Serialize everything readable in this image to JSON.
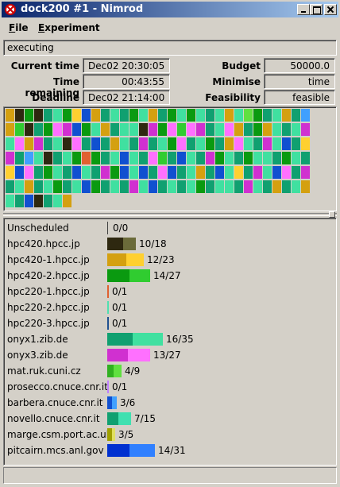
{
  "window": {
    "title": "dock200 #1 - Nimrod"
  },
  "menu": {
    "file": "File",
    "experiment": "Experiment"
  },
  "status": "executing",
  "info": {
    "current_time_label": "Current time",
    "current_time": "Dec02 20:30:05",
    "time_remaining_label": "Time remaining",
    "time_remaining": "00:43:55",
    "deadline_label": "Deadline",
    "deadline": "Dec02 21:14:00",
    "budget_label": "Budget",
    "budget": "50000.0",
    "minimise_label": "Minimise",
    "minimise": "time",
    "feasibility_label": "Feasibility",
    "feasibility": "feasible"
  },
  "colors": {
    "hpc420": "#2e2810",
    "hpc420b": "#6b6b3a",
    "hpc420_1": "#d4a010",
    "hpc420_1b": "#ffd030",
    "hpc420_2": "#0a9a10",
    "hpc420_2b": "#30cc30",
    "hpc220_1": "#e06030",
    "hpc220_2": "#50e0b0",
    "hpc220_3": "#205090",
    "onyx1": "#10a070",
    "onyx1b": "#40e0a0",
    "onyx3": "#d030d0",
    "onyx3b": "#ff70ff",
    "matruk": "#30b020",
    "matrukb": "#60e040",
    "prosecco": "#c080ff",
    "barbera": "#1050d0",
    "barberab": "#40a0ff",
    "novello": "#10a070",
    "novellob": "#40e0b0",
    "marge": "#a0a000",
    "margeb": "#e0e060",
    "pitcairn": "#0030d0",
    "pitcairnb": "#3080ff"
  },
  "job_grid": {
    "rows": [
      [
        "hpc420_1",
        "hpc420",
        "hpc420_2",
        "hpc420",
        "onyx1",
        "onyx1b",
        "hpc420_2",
        "hpc420_1b",
        "barbera",
        "hpc420_1",
        "onyx1",
        "onyx1b",
        "onyx1",
        "hpc420_2",
        "onyx1b",
        "hpc420_1",
        "onyx1",
        "hpc420_2",
        "onyx1b",
        "hpc420_2",
        "onyx1b",
        "onyx1",
        "onyx1b",
        "hpc420_1",
        "onyx1b",
        "matrukb",
        "hpc420_2",
        "onyx1",
        "onyx1b",
        "hpc420_1",
        "onyx1",
        "barberab"
      ],
      [
        "hpc420_1",
        "hpc420_2b",
        "hpc420",
        "onyx1",
        "hpc420_2",
        "onyx3b",
        "onyx3",
        "barbera",
        "hpc420_2",
        "onyx1b",
        "hpc420_1",
        "onyx1",
        "onyx1b",
        "onyx1b",
        "hpc420",
        "onyx3",
        "hpc420_2",
        "onyx3b",
        "hpc420_2b",
        "onyx3b",
        "onyx3",
        "onyx1",
        "onyx1b",
        "onyx3b",
        "hpc420_1",
        "onyx1",
        "hpc420_2",
        "hpc420_1",
        "onyx1b",
        "onyx1",
        "onyx1b",
        "onyx3"
      ],
      [
        "onyx1b",
        "onyx3b",
        "hpc420_1",
        "onyx3",
        "onyx1",
        "onyx1b",
        "hpc420",
        "onyx3b",
        "onyx1",
        "barbera",
        "onyx1",
        "hpc420_1",
        "onyx1b",
        "onyx1",
        "onyx3",
        "onyx1",
        "onyx1b",
        "hpc420_2",
        "onyx3b",
        "onyx1",
        "onyx1b",
        "hpc420_2",
        "onyx1",
        "hpc420_1",
        "onyx3b",
        "onyx1b",
        "onyx1",
        "onyx3",
        "onyx1b",
        "barbera",
        "onyx1",
        "hpc420_1b"
      ],
      [
        "onyx3",
        "onyx1",
        "barberab",
        "onyx1b",
        "hpc420",
        "onyx1",
        "onyx1b",
        "hpc420_2",
        "hpc220_1",
        "hpc420_2",
        "onyx1",
        "onyx1b",
        "barbera",
        "onyx1b",
        "onyx1",
        "onyx3b",
        "hpc420_2b",
        "onyx1",
        "barbera",
        "onyx1b",
        "onyx1",
        "onyx3",
        "hpc420_2",
        "onyx1b",
        "onyx1",
        "hpc420_2",
        "onyx1b",
        "onyx1b",
        "onyx1",
        "hpc420_2",
        "onyx1b",
        "onyx1"
      ],
      [
        "hpc420_1b",
        "barbera",
        "onyx3b",
        "onyx1",
        "hpc420_2",
        "onyx1b",
        "onyx1",
        "barbera",
        "onyx1b",
        "onyx1",
        "onyx3",
        "hpc420_2",
        "barbera",
        "onyx1b",
        "barbera",
        "onyx1",
        "onyx3b",
        "barbera",
        "onyx1",
        "onyx1b",
        "hpc420_1",
        "onyx1",
        "barbera",
        "onyx1b",
        "hpc420_1b",
        "onyx1",
        "onyx3",
        "onyx1b",
        "barbera",
        "onyx3b",
        "onyx1",
        "onyx3"
      ],
      [
        "onyx1",
        "onyx1b",
        "hpc420_1",
        "onyx1",
        "onyx1b",
        "hpc420_2",
        "onyx1",
        "onyx1b",
        "barbera",
        "hpc420_2",
        "onyx1",
        "onyx1b",
        "onyx1",
        "onyx3",
        "onyx1b",
        "barbera",
        "onyx1",
        "onyx1b",
        "onyx1",
        "onyx1b",
        "hpc420_2",
        "onyx1",
        "onyx1b",
        "onyx1b",
        "onyx1",
        "onyx3",
        "onyx1b",
        "onyx1",
        "hpc420_1",
        "onyx1",
        "onyx1b",
        "hpc420_1"
      ],
      [
        "onyx1b",
        "onyx1",
        "barbera",
        "hpc420",
        "onyx1",
        "onyx1b",
        "hpc420_1"
      ]
    ]
  },
  "hosts": [
    {
      "name": "Unscheduled",
      "count": "0/0",
      "segments": []
    },
    {
      "name": "hpc420.hpcc.jp",
      "count": "10/18",
      "segments": [
        {
          "c": "hpc420",
          "w": 20
        },
        {
          "c": "hpc420b",
          "w": 16
        }
      ]
    },
    {
      "name": "hpc420-1.hpcc.jp",
      "count": "12/23",
      "segments": [
        {
          "c": "hpc420_1",
          "w": 24
        },
        {
          "c": "hpc420_1b",
          "w": 22
        }
      ]
    },
    {
      "name": "hpc420-2.hpcc.jp",
      "count": "14/27",
      "segments": [
        {
          "c": "hpc420_2",
          "w": 28
        },
        {
          "c": "hpc420_2b",
          "w": 26
        }
      ]
    },
    {
      "name": "hpc220-1.hpcc.jp",
      "count": "0/1",
      "segments": [
        {
          "c": "hpc220_1",
          "w": 2
        }
      ]
    },
    {
      "name": "hpc220-2.hpcc.jp",
      "count": "0/1",
      "segments": [
        {
          "c": "hpc220_2",
          "w": 2
        }
      ]
    },
    {
      "name": "hpc220-3.hpcc.jp",
      "count": "0/1",
      "segments": [
        {
          "c": "hpc220_3",
          "w": 2
        }
      ]
    },
    {
      "name": "onyx1.zib.de",
      "count": "16/35",
      "segments": [
        {
          "c": "onyx1",
          "w": 32
        },
        {
          "c": "onyx1b",
          "w": 38
        }
      ]
    },
    {
      "name": "onyx3.zib.de",
      "count": "13/27",
      "segments": [
        {
          "c": "onyx3",
          "w": 26
        },
        {
          "c": "onyx3b",
          "w": 28
        }
      ]
    },
    {
      "name": "mat.ruk.cuni.cz",
      "count": "4/9",
      "segments": [
        {
          "c": "matruk",
          "w": 8
        },
        {
          "c": "matrukb",
          "w": 10
        }
      ]
    },
    {
      "name": "prosecco.cnuce.cnr.it",
      "count": "0/1",
      "segments": [
        {
          "c": "prosecco",
          "w": 2
        }
      ]
    },
    {
      "name": "barbera.cnuce.cnr.it",
      "count": "3/6",
      "segments": [
        {
          "c": "barbera",
          "w": 6
        },
        {
          "c": "barberab",
          "w": 6
        }
      ]
    },
    {
      "name": "novello.cnuce.cnr.it",
      "count": "7/15",
      "segments": [
        {
          "c": "novello",
          "w": 14
        },
        {
          "c": "novellob",
          "w": 16
        }
      ]
    },
    {
      "name": "marge.csm.port.ac.uk",
      "count": "3/5",
      "segments": [
        {
          "c": "marge",
          "w": 6
        },
        {
          "c": "margeb",
          "w": 4
        }
      ]
    },
    {
      "name": "pitcairn.mcs.anl.gov",
      "count": "14/31",
      "segments": [
        {
          "c": "pitcairn",
          "w": 28
        },
        {
          "c": "pitcairnb",
          "w": 32
        }
      ]
    }
  ]
}
